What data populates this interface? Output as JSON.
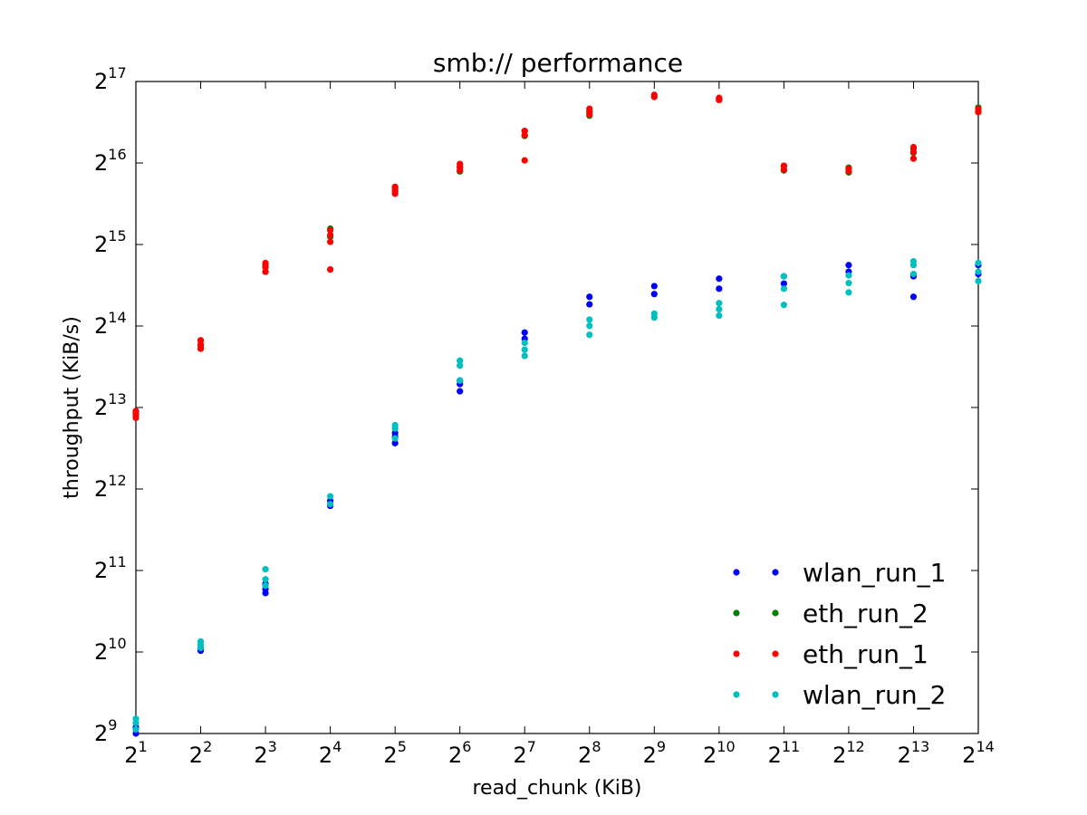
{
  "chart_data": {
    "type": "scatter",
    "title": "smb:// performance",
    "xlabel": "read_chunk (KiB)",
    "ylabel": "throughput (KiB/s)",
    "x_scale": "log2",
    "y_scale": "log2",
    "xlim": [
      2,
      16384
    ],
    "ylim": [
      512,
      131072
    ],
    "x_ticks": [
      {
        "base": "2",
        "exp": "1"
      },
      {
        "base": "2",
        "exp": "2"
      },
      {
        "base": "2",
        "exp": "3"
      },
      {
        "base": "2",
        "exp": "4"
      },
      {
        "base": "2",
        "exp": "5"
      },
      {
        "base": "2",
        "exp": "6"
      },
      {
        "base": "2",
        "exp": "7"
      },
      {
        "base": "2",
        "exp": "8"
      },
      {
        "base": "2",
        "exp": "9"
      },
      {
        "base": "2",
        "exp": "10"
      },
      {
        "base": "2",
        "exp": "11"
      },
      {
        "base": "2",
        "exp": "12"
      },
      {
        "base": "2",
        "exp": "13"
      },
      {
        "base": "2",
        "exp": "14"
      }
    ],
    "y_ticks": [
      {
        "base": "2",
        "exp": "9"
      },
      {
        "base": "2",
        "exp": "10"
      },
      {
        "base": "2",
        "exp": "11"
      },
      {
        "base": "2",
        "exp": "12"
      },
      {
        "base": "2",
        "exp": "13"
      },
      {
        "base": "2",
        "exp": "14"
      },
      {
        "base": "2",
        "exp": "15"
      },
      {
        "base": "2",
        "exp": "16"
      },
      {
        "base": "2",
        "exp": "17"
      }
    ],
    "grid": false,
    "legend_position": "lower-right",
    "series": [
      {
        "name": "wlan_run_1",
        "color": "#0000ff",
        "x": [
          2,
          2,
          4,
          4,
          8,
          8,
          8,
          16,
          16,
          32,
          32,
          32,
          64,
          64,
          64,
          128,
          128,
          256,
          256,
          512,
          512,
          1024,
          1024,
          2048,
          2048,
          4096,
          4096,
          8192,
          8192,
          16384,
          16384
        ],
        "y": [
          512,
          540,
          1035,
          1060,
          1690,
          1750,
          1830,
          3550,
          3700,
          6050,
          6400,
          6600,
          9400,
          10000,
          10300,
          14700,
          15500,
          19700,
          21000,
          21500,
          23000,
          22500,
          24500,
          23500,
          25000,
          26000,
          27500,
          21000,
          25000,
          25500,
          27500
        ]
      },
      {
        "name": "eth_run_2",
        "color": "#008000",
        "x": [
          2,
          2,
          4,
          4,
          8,
          8,
          16,
          16,
          32,
          32,
          64,
          64,
          128,
          128,
          256,
          256,
          512,
          1024,
          2048,
          2048,
          4096,
          4096,
          8192,
          8192,
          16384,
          16384
        ],
        "y": [
          7650,
          7900,
          13800,
          14500,
          26000,
          27500,
          35000,
          37500,
          51500,
          53000,
          61000,
          63500,
          82500,
          86000,
          98000,
          102000,
          115000,
          113000,
          61500,
          64000,
          60500,
          63000,
          71500,
          74000,
          102000,
          105000
        ]
      },
      {
        "name": "eth_run_1",
        "color": "#ff0000",
        "x": [
          2,
          2,
          2,
          4,
          4,
          4,
          8,
          8,
          8,
          16,
          16,
          16,
          16,
          32,
          32,
          32,
          64,
          64,
          64,
          128,
          128,
          128,
          256,
          256,
          256,
          512,
          512,
          1024,
          1024,
          2048,
          2048,
          4096,
          4096,
          8192,
          8192,
          8192,
          16384,
          16384
        ],
        "y": [
          7500,
          7750,
          7950,
          13500,
          14000,
          14500,
          26000,
          27000,
          28000,
          26500,
          33500,
          35500,
          37000,
          50500,
          52000,
          53500,
          61500,
          63000,
          65000,
          67000,
          83000,
          86000,
          99000,
          101000,
          104000,
          115000,
          117000,
          112000,
          114000,
          62000,
          64000,
          61000,
          62500,
          68000,
          72000,
          75000,
          101000,
          104000
        ]
      },
      {
        "name": "wlan_run_2",
        "color": "#00bfbf",
        "x": [
          2,
          2,
          2,
          4,
          4,
          4,
          8,
          8,
          8,
          16,
          16,
          32,
          32,
          32,
          64,
          64,
          64,
          128,
          128,
          128,
          256,
          256,
          256,
          512,
          512,
          1024,
          1024,
          1024,
          2048,
          2048,
          2048,
          4096,
          4096,
          4096,
          8192,
          8192,
          8192,
          16384,
          16384,
          16384
        ],
        "y": [
          530,
          560,
          580,
          1060,
          1090,
          1120,
          1800,
          1900,
          2070,
          3600,
          3850,
          6300,
          6850,
          7050,
          10300,
          11700,
          12200,
          12700,
          13400,
          14200,
          15200,
          16400,
          17300,
          17600,
          18200,
          17900,
          18900,
          19900,
          19600,
          22500,
          25000,
          21800,
          23600,
          25200,
          25500,
          27500,
          28400,
          24000,
          26000,
          28000
        ]
      }
    ]
  }
}
